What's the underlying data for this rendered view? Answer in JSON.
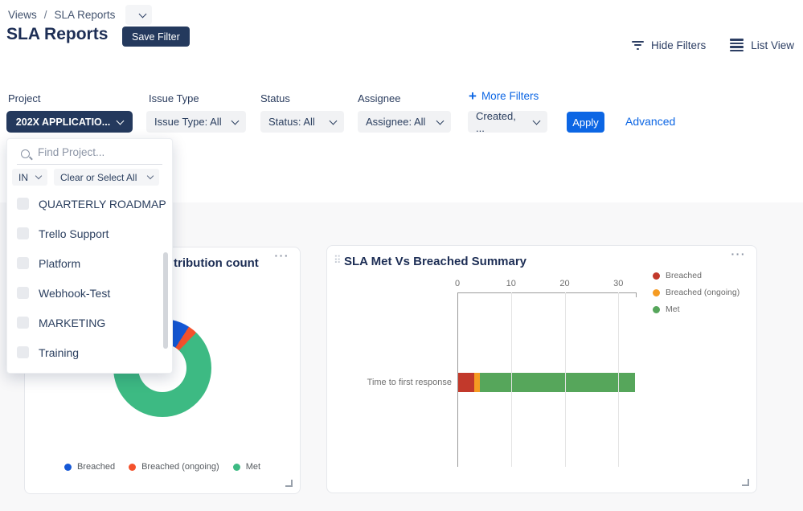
{
  "breadcrumb": {
    "items": [
      "Views",
      "SLA Reports"
    ],
    "separator": "/"
  },
  "header": {
    "title": "SLA Reports",
    "save_filter": "Save Filter",
    "hide_filters": "Hide Filters",
    "list_view": "List View"
  },
  "filters": {
    "project": {
      "label": "Project",
      "value": "202X APPLICATIO..."
    },
    "issue_type": {
      "label": "Issue Type",
      "value": "Issue Type: All"
    },
    "status": {
      "label": "Status",
      "value": "Status: All"
    },
    "assignee": {
      "label": "Assignee",
      "value": "Assignee: All"
    },
    "more_filters": "More Filters",
    "created_value": "Created, ...",
    "apply": "Apply",
    "advanced": "Advanced"
  },
  "project_dropdown": {
    "search_placeholder": "Find Project...",
    "operator": "IN",
    "select_all": "Clear or Select All",
    "options": [
      "QUARTERLY ROADMAP",
      "Trello Support",
      "Platform",
      "Webhook-Test",
      "MARKETING",
      "Training"
    ]
  },
  "icons": {
    "plus": "+",
    "ellipsis": "···",
    "drag_handle": "⠿"
  },
  "colors": {
    "accent_blue": "#0c66e4",
    "navy": "#24395d",
    "donut_breached": "#1558d6",
    "donut_breached_ongoing": "#f4512c",
    "donut_met": "#3dba83",
    "bar_breached": "#c2392b",
    "bar_breached_ongoing": "#f59b22",
    "bar_met": "#56a65b"
  },
  "chart_data": [
    {
      "type": "pie",
      "subtype": "donut",
      "title_visible": "tribution count",
      "labels": [
        "Breached",
        "Breached (ongoing)",
        "Met"
      ],
      "values": [
        3,
        1,
        29
      ],
      "colors": [
        "#1558d6",
        "#f4512c",
        "#3dba83"
      ],
      "start_angle_deg": 0,
      "legend_position": "bottom"
    },
    {
      "type": "bar",
      "orientation": "horizontal",
      "stacked": true,
      "title": "SLA Met Vs Breached Summary",
      "categories": [
        "Time to first response"
      ],
      "series": [
        {
          "name": "Breached",
          "values": [
            3
          ],
          "color": "#c2392b"
        },
        {
          "name": "Breached (ongoing)",
          "values": [
            1
          ],
          "color": "#f59b22"
        },
        {
          "name": "Met",
          "values": [
            29
          ],
          "color": "#56a65b"
        }
      ],
      "xlim": [
        0,
        33.4
      ],
      "x_ticks": [
        0,
        10,
        20,
        30
      ],
      "grid": true,
      "legend_position": "right",
      "xlabel": "",
      "ylabel": ""
    }
  ]
}
